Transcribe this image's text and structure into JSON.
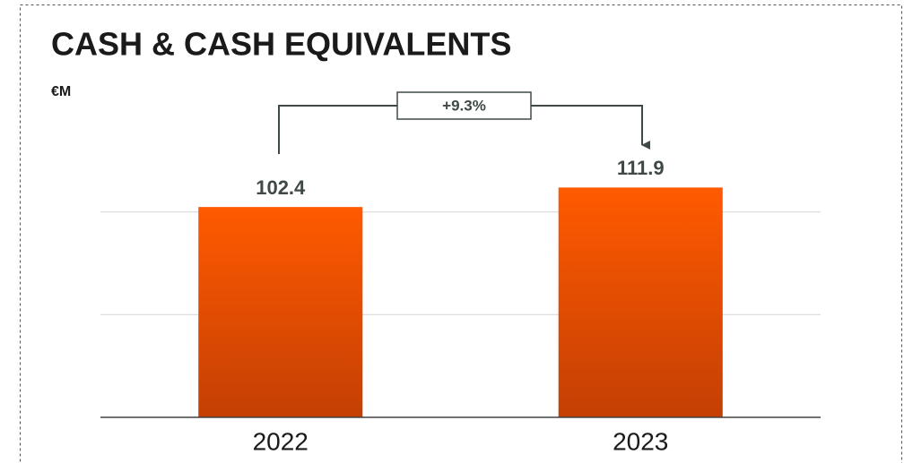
{
  "chart_data": {
    "type": "bar",
    "title": "CASH & CASH EQUIVALENTS",
    "unit_label": "€M",
    "categories": [
      "2022",
      "2023"
    ],
    "values": [
      102.4,
      111.9
    ],
    "annotation": "+9.3%",
    "color_top": "#ff5a00",
    "color_bottom": "#c43f04",
    "ylim": [
      0,
      150
    ],
    "yticks": [
      0,
      50,
      100
    ],
    "grid": true
  }
}
